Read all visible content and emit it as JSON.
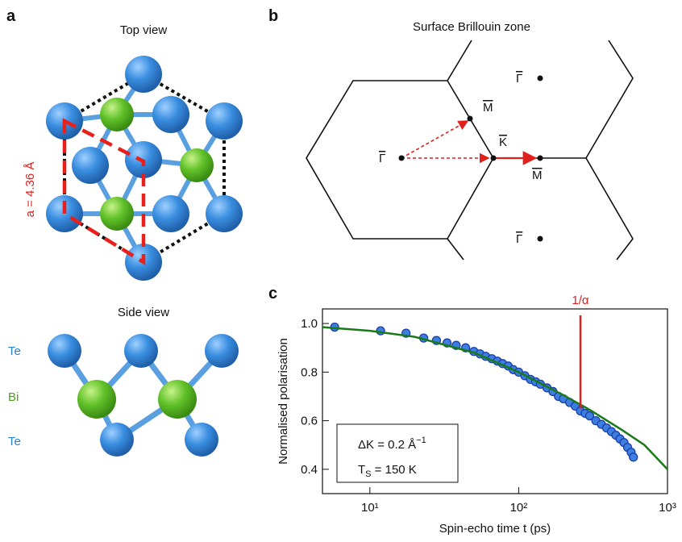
{
  "panels": {
    "a": {
      "label": "a",
      "top_title": "Top view",
      "lattice_label": "a = 4.36 Å",
      "side_title": "Side view",
      "layers": [
        "Te",
        "Bi",
        "Te"
      ]
    },
    "b": {
      "label": "b",
      "title": "Surface Brillouin zone",
      "points": [
        "Γ",
        "M",
        "K",
        "M",
        "Γ",
        "Γ"
      ]
    },
    "c": {
      "label": "c"
    }
  },
  "chart_data": {
    "type": "scatter",
    "x_label": "Spin-echo time t (ps)",
    "y_label": "Normalised polarisation",
    "xlog": true,
    "xlim": [
      4.8,
      1000
    ],
    "ylim": [
      0.3,
      1.06
    ],
    "xticks": [
      {
        "value": 10,
        "label": "10¹"
      },
      {
        "value": 100,
        "label": "10²"
      },
      {
        "value": 1000,
        "label": "10³"
      }
    ],
    "yticks": [
      0.4,
      0.6,
      0.8,
      {
        "value": 1,
        "label": "1.0"
      }
    ],
    "series": [
      {
        "color": "#3d7fe0",
        "x": [
          5.8,
          11.8,
          17.5,
          23,
          28,
          33,
          38,
          44,
          50,
          55,
          60,
          66,
          72,
          78,
          85,
          92,
          100,
          110,
          120,
          130,
          140,
          155,
          170,
          185,
          200,
          220,
          240,
          260,
          280,
          300,
          330,
          360,
          390,
          420,
          450,
          480,
          510,
          540,
          570,
          590
        ],
        "values": [
          0.985,
          0.97,
          0.96,
          0.94,
          0.93,
          0.92,
          0.91,
          0.9,
          0.885,
          0.875,
          0.865,
          0.855,
          0.845,
          0.835,
          0.825,
          0.81,
          0.8,
          0.785,
          0.77,
          0.76,
          0.75,
          0.735,
          0.72,
          0.7,
          0.69,
          0.675,
          0.66,
          0.64,
          0.63,
          0.62,
          0.6,
          0.585,
          0.57,
          0.555,
          0.54,
          0.525,
          0.51,
          0.49,
          0.47,
          0.45
        ]
      },
      {
        "type": "line",
        "color": "#1a7a1a",
        "x": [
          4.8,
          10,
          20,
          50,
          100,
          200,
          300,
          500,
          700,
          1000
        ],
        "values": [
          0.985,
          0.97,
          0.945,
          0.88,
          0.8,
          0.705,
          0.645,
          0.56,
          0.5,
          0.4
        ]
      }
    ],
    "marker": {
      "label": "1/α",
      "x": 260,
      "y": 0.65,
      "color": "#e0201c"
    },
    "info": [
      {
        "text": "ΔK = 0.2 Å",
        "sup": "−1"
      },
      {
        "text": "T",
        "sub": "S",
        "rest": " = 150 K"
      }
    ]
  }
}
